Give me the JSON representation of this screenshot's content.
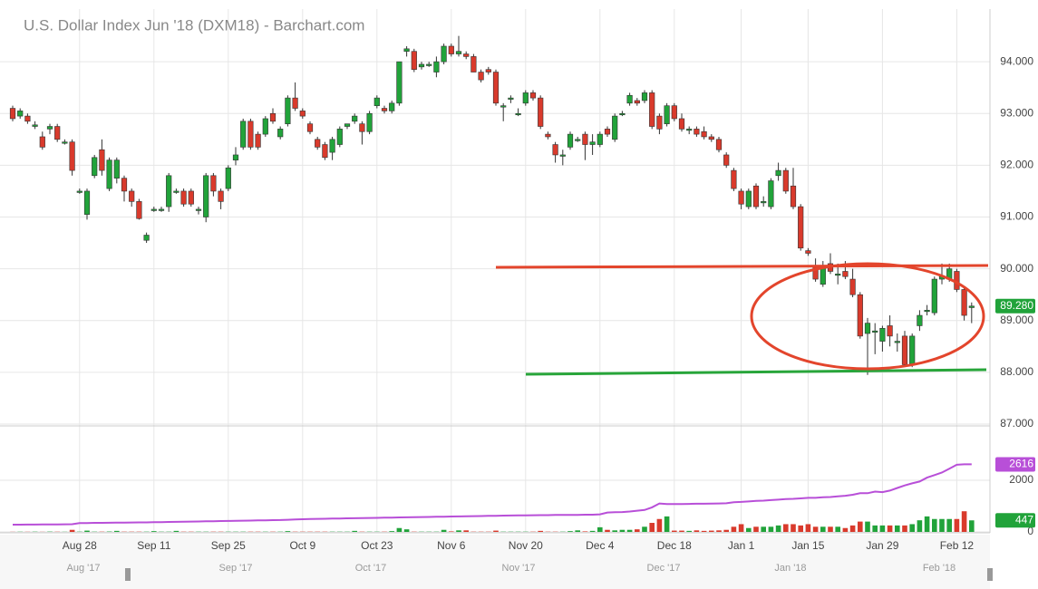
{
  "chart_data": {
    "type": "candlestick",
    "title": "U.S. Dollar Index Jun '18 (DXM18) - Barchart.com",
    "categories": [
      null,
      null,
      null,
      null,
      null,
      null,
      null,
      null,
      null,
      "Aug 28",
      null,
      null,
      null,
      null,
      null,
      null,
      null,
      null,
      null,
      "Sep 11",
      null,
      null,
      null,
      null,
      null,
      null,
      null,
      null,
      null,
      "Sep 25",
      null,
      null,
      null,
      null,
      null,
      null,
      null,
      null,
      null,
      "Oct 9",
      null,
      null,
      null,
      null,
      null,
      null,
      null,
      null,
      null,
      "Oct 23",
      null,
      null,
      null,
      null,
      null,
      null,
      null,
      null,
      null,
      "Nov 6",
      null,
      null,
      null,
      null,
      null,
      null,
      null,
      null,
      null,
      "Nov 20",
      null,
      null,
      null,
      null,
      null,
      null,
      null,
      null,
      null,
      "Dec 4",
      null,
      null,
      null,
      null,
      null,
      null,
      null,
      null,
      null,
      "Dec 18",
      null,
      null,
      null,
      null,
      null,
      null,
      null,
      null,
      "Jan 1",
      null,
      null,
      null,
      null,
      null,
      null,
      null,
      null,
      "Jan 15",
      null,
      null,
      null,
      null,
      null,
      null,
      null,
      null,
      null,
      "Jan 29",
      null,
      null,
      null,
      null,
      null,
      null,
      null,
      null,
      null,
      "Feb 12",
      null,
      null
    ],
    "open": [
      93.1,
      92.95,
      92.95,
      92.75,
      92.55,
      92.7,
      92.75,
      92.45,
      92.45,
      91.5,
      91.05,
      91.8,
      92.3,
      91.55,
      91.75,
      91.75,
      91.5,
      91.3,
      90.55,
      91.15,
      91.15,
      91.2,
      91.5,
      91.5,
      91.5,
      91.15,
      91.0,
      91.8,
      91.5,
      91.55,
      92.1,
      92.35,
      92.85,
      92.6,
      92.6,
      93.0,
      92.55,
      92.8,
      93.3,
      93.05,
      92.8,
      92.5,
      92.4,
      92.25,
      92.4,
      92.75,
      92.85,
      92.8,
      92.65,
      93.15,
      93.1,
      93.05,
      93.2,
      94.2,
      94.2,
      93.9,
      93.95,
      93.8,
      94.0,
      94.3,
      94.15,
      94.15,
      94.1,
      93.8,
      93.85,
      93.8,
      93.15,
      93.3,
      93.0,
      93.2,
      93.4,
      93.3,
      92.6,
      92.4,
      92.2,
      92.35,
      92.5,
      92.6,
      92.4,
      92.4,
      92.7,
      92.5,
      93.0,
      93.2,
      93.25,
      93.25,
      93.4,
      92.95,
      92.8,
      93.15,
      92.9,
      92.7,
      92.7,
      92.65,
      92.55,
      92.5,
      92.2,
      91.9,
      91.5,
      91.2,
      91.6,
      91.3,
      91.2,
      91.8,
      91.9,
      91.6,
      91.2,
      90.35,
      90.05,
      89.7,
      90.1,
      89.9,
      89.95,
      89.8,
      89.5,
      88.75,
      88.8,
      88.6,
      88.9,
      88.6,
      88.7,
      88.15,
      88.9,
      89.2,
      89.15,
      89.8,
      89.8,
      89.95,
      89.6,
      89.25
    ],
    "high": [
      93.15,
      93.1,
      93.0,
      92.85,
      92.65,
      92.8,
      92.8,
      92.5,
      92.5,
      91.55,
      91.55,
      92.2,
      92.5,
      92.15,
      92.15,
      91.8,
      91.55,
      91.35,
      90.7,
      91.2,
      91.2,
      91.85,
      91.55,
      91.55,
      91.55,
      91.2,
      91.85,
      91.85,
      91.55,
      92.0,
      92.35,
      92.9,
      92.9,
      92.65,
      92.95,
      93.1,
      92.75,
      93.35,
      93.6,
      93.1,
      92.85,
      92.55,
      92.45,
      92.55,
      92.75,
      92.8,
      93.0,
      92.85,
      93.05,
      93.35,
      93.15,
      93.25,
      94.0,
      94.3,
      94.25,
      94.0,
      94.0,
      94.1,
      94.35,
      94.35,
      94.5,
      94.2,
      94.15,
      93.85,
      93.9,
      93.85,
      93.2,
      93.35,
      93.1,
      93.45,
      93.45,
      93.35,
      92.65,
      92.45,
      92.3,
      92.65,
      92.55,
      92.65,
      92.6,
      92.65,
      92.75,
      93.0,
      93.05,
      93.4,
      93.3,
      93.45,
      93.45,
      93.0,
      93.2,
      93.2,
      93.0,
      92.75,
      92.75,
      92.75,
      92.6,
      92.55,
      92.25,
      91.95,
      91.55,
      91.55,
      91.65,
      91.4,
      91.75,
      92.05,
      91.95,
      91.95,
      91.25,
      90.4,
      90.2,
      90.15,
      90.3,
      90.1,
      90.15,
      90.0,
      89.55,
      89.05,
      88.95,
      88.9,
      89.1,
      88.75,
      88.8,
      88.75,
      89.2,
      89.3,
      89.85,
      90.1,
      90.1,
      90.0,
      89.65,
      89.35
    ],
    "low": [
      92.85,
      92.9,
      92.8,
      92.7,
      92.3,
      92.6,
      92.45,
      92.4,
      91.8,
      91.45,
      90.95,
      91.75,
      91.8,
      91.5,
      91.65,
      91.3,
      91.2,
      90.95,
      90.5,
      91.1,
      91.1,
      91.1,
      91.45,
      91.2,
      91.2,
      91.05,
      90.9,
      91.4,
      91.15,
      91.5,
      92.0,
      92.3,
      92.3,
      92.3,
      92.55,
      92.8,
      92.5,
      92.75,
      93.05,
      92.9,
      92.6,
      92.3,
      92.1,
      92.1,
      92.35,
      92.7,
      92.8,
      92.4,
      92.6,
      93.1,
      93.0,
      93.0,
      93.15,
      94.1,
      93.8,
      93.85,
      93.9,
      93.7,
      93.95,
      94.1,
      94.1,
      94.05,
      93.8,
      93.6,
      93.75,
      93.15,
      92.85,
      93.2,
      92.95,
      93.15,
      93.25,
      92.7,
      92.5,
      92.05,
      92.0,
      92.3,
      92.45,
      92.1,
      92.2,
      92.35,
      92.55,
      92.45,
      92.95,
      93.15,
      93.15,
      93.2,
      92.7,
      92.6,
      92.75,
      92.85,
      92.65,
      92.6,
      92.55,
      92.5,
      92.45,
      92.25,
      91.95,
      91.5,
      91.15,
      91.15,
      91.15,
      91.2,
      91.15,
      91.7,
      91.45,
      91.15,
      90.35,
      90.25,
      89.75,
      89.65,
      89.9,
      89.7,
      89.8,
      89.45,
      88.65,
      87.95,
      88.35,
      88.4,
      88.5,
      88.4,
      88.1,
      88.1,
      88.8,
      89.1,
      89.1,
      89.7,
      89.75,
      89.55,
      89.0,
      88.95
    ],
    "close": [
      92.9,
      93.05,
      92.85,
      92.78,
      92.35,
      92.75,
      92.5,
      92.45,
      91.9,
      91.5,
      91.5,
      92.15,
      91.9,
      92.1,
      92.1,
      91.5,
      91.3,
      90.97,
      90.65,
      91.15,
      91.15,
      91.8,
      91.5,
      91.25,
      91.25,
      91.15,
      91.8,
      91.5,
      91.3,
      91.95,
      92.2,
      92.85,
      92.35,
      92.35,
      92.9,
      92.85,
      92.7,
      93.3,
      93.1,
      92.95,
      92.65,
      92.35,
      92.15,
      92.5,
      92.7,
      92.8,
      92.95,
      92.65,
      93.0,
      93.3,
      93.05,
      93.2,
      94.0,
      94.25,
      93.85,
      93.95,
      93.95,
      94.0,
      94.3,
      94.15,
      94.2,
      94.1,
      93.8,
      93.65,
      93.8,
      93.2,
      93.15,
      93.3,
      93.0,
      93.4,
      93.3,
      92.75,
      92.55,
      92.2,
      92.2,
      92.6,
      92.5,
      92.4,
      92.45,
      92.6,
      92.6,
      92.95,
      93.0,
      93.35,
      93.2,
      93.4,
      92.75,
      92.7,
      93.15,
      92.9,
      92.7,
      92.7,
      92.6,
      92.55,
      92.5,
      92.3,
      92.0,
      91.55,
      91.25,
      91.5,
      91.2,
      91.3,
      91.7,
      91.9,
      91.5,
      91.2,
      90.4,
      90.3,
      89.8,
      90.05,
      89.95,
      89.9,
      89.85,
      89.5,
      88.7,
      88.95,
      88.8,
      88.85,
      88.7,
      88.6,
      88.15,
      88.7,
      89.1,
      89.2,
      89.8,
      89.85,
      90.0,
      89.6,
      89.1,
      89.28
    ],
    "up_color": "#21a33a",
    "down_color": "#d93a2c",
    "ylim": [
      87,
      95
    ],
    "yticks": [
      {
        "value": 87,
        "label": "87.000"
      },
      {
        "value": 88,
        "label": "88.000"
      },
      {
        "value": 89,
        "label": "89.000"
      },
      {
        "value": 90,
        "label": "90.000"
      },
      {
        "value": 91,
        "label": "91.000"
      },
      {
        "value": 92,
        "label": "92.000"
      },
      {
        "value": 93,
        "label": "93.000"
      },
      {
        "value": 94,
        "label": "94.000"
      }
    ],
    "last_label": "89.280",
    "grid": true,
    "volume": [
      5,
      8,
      6,
      10,
      5,
      12,
      8,
      6,
      80,
      10,
      50,
      10,
      10,
      15,
      40,
      10,
      10,
      10,
      10,
      30,
      10,
      10,
      40,
      10,
      10,
      10,
      10,
      10,
      10,
      10,
      10,
      10,
      10,
      10,
      10,
      10,
      10,
      30,
      10,
      10,
      10,
      10,
      10,
      10,
      10,
      10,
      40,
      10,
      10,
      10,
      10,
      30,
      150,
      100,
      10,
      10,
      10,
      10,
      80,
      20,
      60,
      60,
      10,
      10,
      10,
      50,
      10,
      10,
      10,
      10,
      10,
      40,
      10,
      10,
      10,
      30,
      60,
      20,
      40,
      180,
      80,
      60,
      80,
      80,
      100,
      200,
      350,
      500,
      600,
      50,
      50,
      40,
      60,
      40,
      50,
      60,
      80,
      200,
      300,
      150,
      200,
      200,
      200,
      250,
      300,
      300,
      250,
      300,
      200,
      200,
      200,
      200,
      150,
      250,
      400,
      400,
      250,
      250,
      250,
      250,
      250,
      300,
      450,
      600,
      500,
      500,
      500,
      500,
      800,
      447
    ],
    "volume_label": "447",
    "open_interest": [
      280,
      280,
      285,
      285,
      290,
      290,
      290,
      295,
      300,
      340,
      345,
      350,
      350,
      355,
      360,
      360,
      365,
      370,
      370,
      375,
      380,
      385,
      390,
      395,
      400,
      405,
      410,
      415,
      420,
      425,
      430,
      435,
      440,
      445,
      450,
      455,
      460,
      470,
      480,
      490,
      500,
      505,
      510,
      515,
      520,
      525,
      530,
      535,
      540,
      545,
      550,
      555,
      560,
      565,
      570,
      575,
      580,
      585,
      590,
      595,
      600,
      605,
      610,
      615,
      620,
      625,
      630,
      635,
      640,
      640,
      645,
      650,
      650,
      655,
      655,
      660,
      660,
      665,
      665,
      680,
      750,
      760,
      770,
      790,
      820,
      850,
      950,
      1100,
      1080,
      1080,
      1080,
      1085,
      1090,
      1090,
      1095,
      1100,
      1110,
      1150,
      1160,
      1180,
      1200,
      1210,
      1230,
      1250,
      1270,
      1280,
      1300,
      1320,
      1320,
      1340,
      1350,
      1380,
      1400,
      1440,
      1500,
      1500,
      1560,
      1540,
      1600,
      1700,
      1800,
      1880,
      1950,
      2100,
      2200,
      2300,
      2450,
      2600,
      2616,
      2616
    ],
    "open_interest_color": "#b84fd8",
    "open_interest_label": "2616",
    "vlim": [
      0,
      4000
    ],
    "vticks": [
      0,
      2000
    ],
    "months": [
      "Aug '17",
      "Sep '17",
      "Oct '17",
      "Nov '17",
      "Dec '17",
      "Jan '18",
      "Feb '18"
    ]
  }
}
